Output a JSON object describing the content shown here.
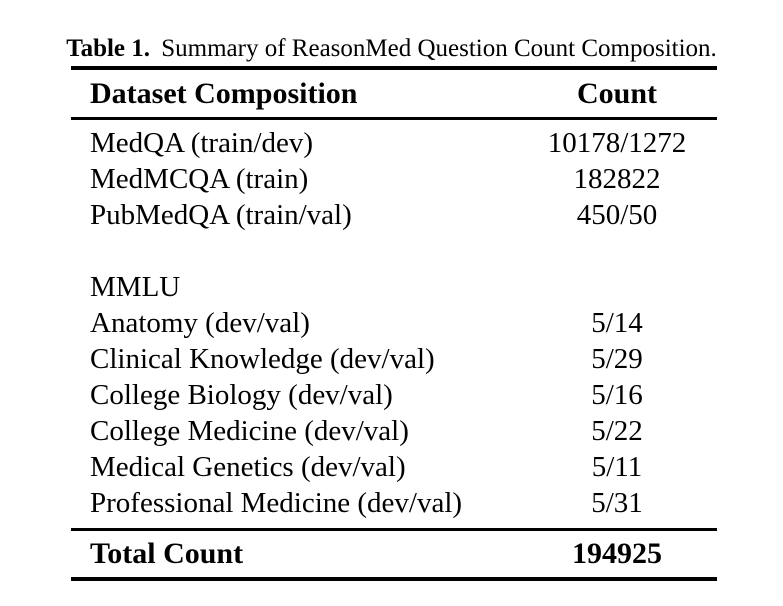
{
  "caption": {
    "label": "Table 1.",
    "text": "Summary of ReasonMed Question Count Composition."
  },
  "table": {
    "headers": [
      "Dataset Composition",
      "Count"
    ],
    "rows": [
      {
        "name": "MedQA (train/dev)",
        "count": "10178/1272"
      },
      {
        "name": "MedMCQA (train)",
        "count": "182822"
      },
      {
        "name": "PubMedQA (train/val)",
        "count": "450/50"
      },
      {
        "name": "MMLU",
        "count": ""
      },
      {
        "name": "Anatomy (dev/val)",
        "count": "5/14"
      },
      {
        "name": "Clinical Knowledge (dev/val)",
        "count": "5/29"
      },
      {
        "name": "College Biology (dev/val)",
        "count": "5/16"
      },
      {
        "name": "College Medicine (dev/val)",
        "count": "5/22"
      },
      {
        "name": "Medical Genetics (dev/val)",
        "count": "5/11"
      },
      {
        "name": "Professional Medicine (dev/val)",
        "count": "5/31"
      }
    ],
    "total": {
      "label": "Total Count",
      "value": "194925"
    }
  },
  "colors": {
    "text": "#000000",
    "background": "#ffffff",
    "rule": "#000000"
  }
}
